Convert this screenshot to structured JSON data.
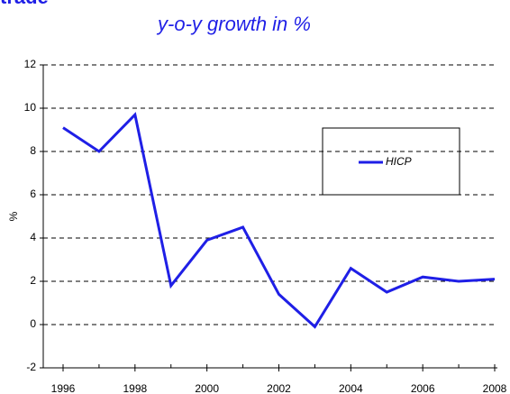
{
  "chart_data": {
    "type": "line",
    "annotations": [
      "trade"
    ],
    "title": "y-o-y growth in %",
    "y_label": "%",
    "x": [
      1996,
      1997,
      1998,
      1999,
      2000,
      2001,
      2002,
      2003,
      2004,
      2005,
      2006,
      2007,
      2008
    ],
    "series": [
      {
        "name": "HICP",
        "color": "#1f1fe6",
        "values": [
          9.1,
          8.0,
          9.7,
          1.8,
          3.9,
          4.5,
          1.4,
          -0.1,
          2.6,
          1.5,
          2.2,
          2.0,
          2.1
        ]
      }
    ],
    "xlim": [
      1996,
      2008
    ],
    "xticks": [
      1996,
      1998,
      2000,
      2002,
      2004,
      2006,
      2008
    ],
    "ylim": [
      -2,
      12
    ],
    "yticks": [
      -2,
      0,
      2,
      4,
      6,
      8,
      10,
      12
    ],
    "grid": true
  }
}
